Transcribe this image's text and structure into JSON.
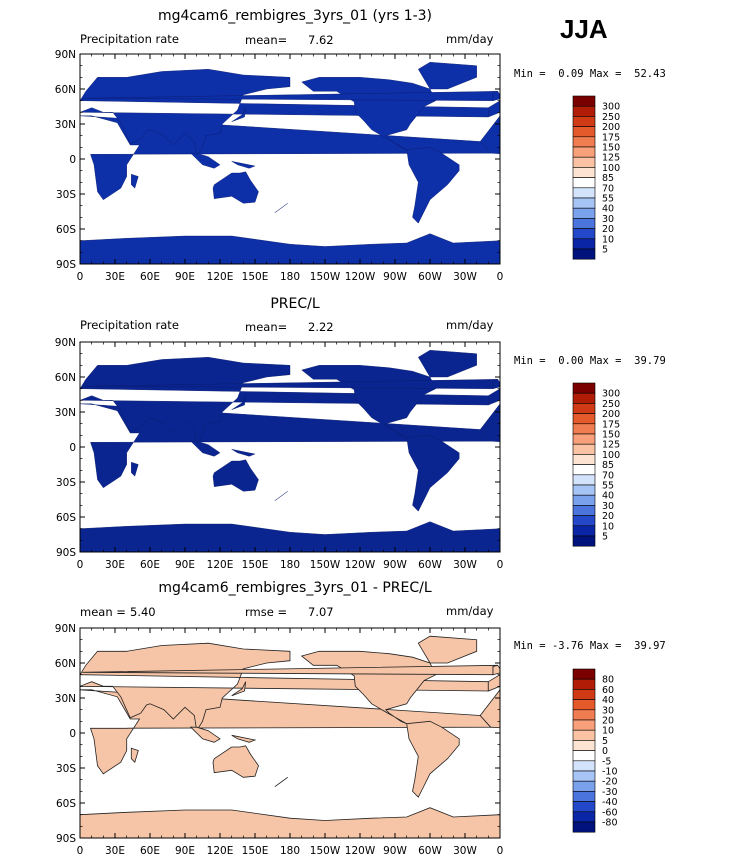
{
  "season": "JJA",
  "units": "mm/day",
  "panels": [
    {
      "title": "mg4cam6_rembigres_3yrs_01 (yrs 1-3)",
      "left_label": "Precipitation rate",
      "stat_label": "mean=",
      "stat_value": "7.62",
      "rmse_label": "",
      "rmse_value": "",
      "min_label": "Min =",
      "min_value": "0.09",
      "max_label": "Max =",
      "max_value": "52.43",
      "colorbar_labels": [
        "300",
        "250",
        "200",
        "175",
        "150",
        "125",
        "100",
        "85",
        "70",
        "55",
        "40",
        "30",
        "20",
        "10",
        "5"
      ],
      "fill_color": "#0d2fa8"
    },
    {
      "title": "PREC/L",
      "left_label": "Precipitation rate",
      "stat_label": "mean=",
      "stat_value": "2.22",
      "rmse_label": "",
      "rmse_value": "",
      "min_label": "Min =",
      "min_value": "0.00",
      "max_label": "Max =",
      "max_value": "39.79",
      "colorbar_labels": [
        "300",
        "250",
        "200",
        "175",
        "150",
        "125",
        "100",
        "85",
        "70",
        "55",
        "40",
        "30",
        "20",
        "10",
        "5"
      ],
      "fill_color": "#0a2590"
    },
    {
      "title": "mg4cam6_rembigres_3yrs_01 - PREC/L",
      "left_label": "",
      "stat_label": "mean =",
      "stat_value": "5.40",
      "rmse_label": "rmse =",
      "rmse_value": "7.07",
      "min_label": "Min =",
      "min_value": "-3.76",
      "max_label": "Max =",
      "max_value": "39.97",
      "colorbar_labels": [
        "80",
        "60",
        "40",
        "30",
        "20",
        "10",
        "5",
        "0",
        "-5",
        "-10",
        "-20",
        "-30",
        "-40",
        "-60",
        "-80"
      ],
      "fill_color": "#f6c4a6"
    }
  ],
  "colors": {
    "precip_scale": [
      "#7a0000",
      "#b01c05",
      "#d03a14",
      "#e55a2b",
      "#f07d50",
      "#f7a07a",
      "#fbc2a3",
      "#fde4d2",
      "#ffffff",
      "#d2e3fb",
      "#a6c4f5",
      "#7aa1ec",
      "#4b74dd",
      "#2348c9",
      "#0a26a6",
      "#00137d"
    ],
    "diff_scale": [
      "#7a0000",
      "#b01c05",
      "#d03a14",
      "#e55a2b",
      "#f07d50",
      "#f7a07a",
      "#fbc2a3",
      "#fde4d2",
      "#ffffff",
      "#d2e3fb",
      "#a6c4f5",
      "#7aa1ec",
      "#4b74dd",
      "#2348c9",
      "#0a26a6",
      "#00137d"
    ]
  },
  "chart_data": [
    {
      "type": "heatmap",
      "title": "mg4cam6_rembigres_3yrs_01 (yrs 1-3)",
      "subtitle_left": "Precipitation rate",
      "units": "mm/day",
      "mean": 7.62,
      "min": 0.09,
      "max": 52.43,
      "x_ticks": [
        "0",
        "30E",
        "60E",
        "90E",
        "120E",
        "150E",
        "180",
        "150W",
        "120W",
        "90W",
        "60W",
        "30W",
        "0"
      ],
      "y_ticks": [
        "90N",
        "60N",
        "30N",
        "0",
        "30S",
        "60S",
        "90S"
      ],
      "colorbar_levels": [
        5,
        10,
        20,
        30,
        40,
        55,
        70,
        85,
        100,
        125,
        150,
        175,
        200,
        250,
        300
      ]
    },
    {
      "type": "heatmap",
      "title": "PREC/L",
      "subtitle_left": "Precipitation rate",
      "units": "mm/day",
      "mean": 2.22,
      "min": 0.0,
      "max": 39.79,
      "x_ticks": [
        "0",
        "30E",
        "60E",
        "90E",
        "120E",
        "150E",
        "180",
        "150W",
        "120W",
        "90W",
        "60W",
        "30W",
        "0"
      ],
      "y_ticks": [
        "90N",
        "60N",
        "30N",
        "0",
        "30S",
        "60S",
        "90S"
      ],
      "colorbar_levels": [
        5,
        10,
        20,
        30,
        40,
        55,
        70,
        85,
        100,
        125,
        150,
        175,
        200,
        250,
        300
      ]
    },
    {
      "type": "heatmap",
      "title": "mg4cam6_rembigres_3yrs_01 - PREC/L",
      "units": "mm/day",
      "mean": 5.4,
      "rmse": 7.07,
      "min": -3.76,
      "max": 39.97,
      "x_ticks": [
        "0",
        "30E",
        "60E",
        "90E",
        "120E",
        "150E",
        "180",
        "150W",
        "120W",
        "90W",
        "60W",
        "30W",
        "0"
      ],
      "y_ticks": [
        "90N",
        "60N",
        "30N",
        "0",
        "30S",
        "60S",
        "90S"
      ],
      "colorbar_levels": [
        -80,
        -60,
        -40,
        -30,
        -20,
        -10,
        -5,
        0,
        5,
        10,
        20,
        30,
        40,
        60,
        80
      ]
    }
  ]
}
